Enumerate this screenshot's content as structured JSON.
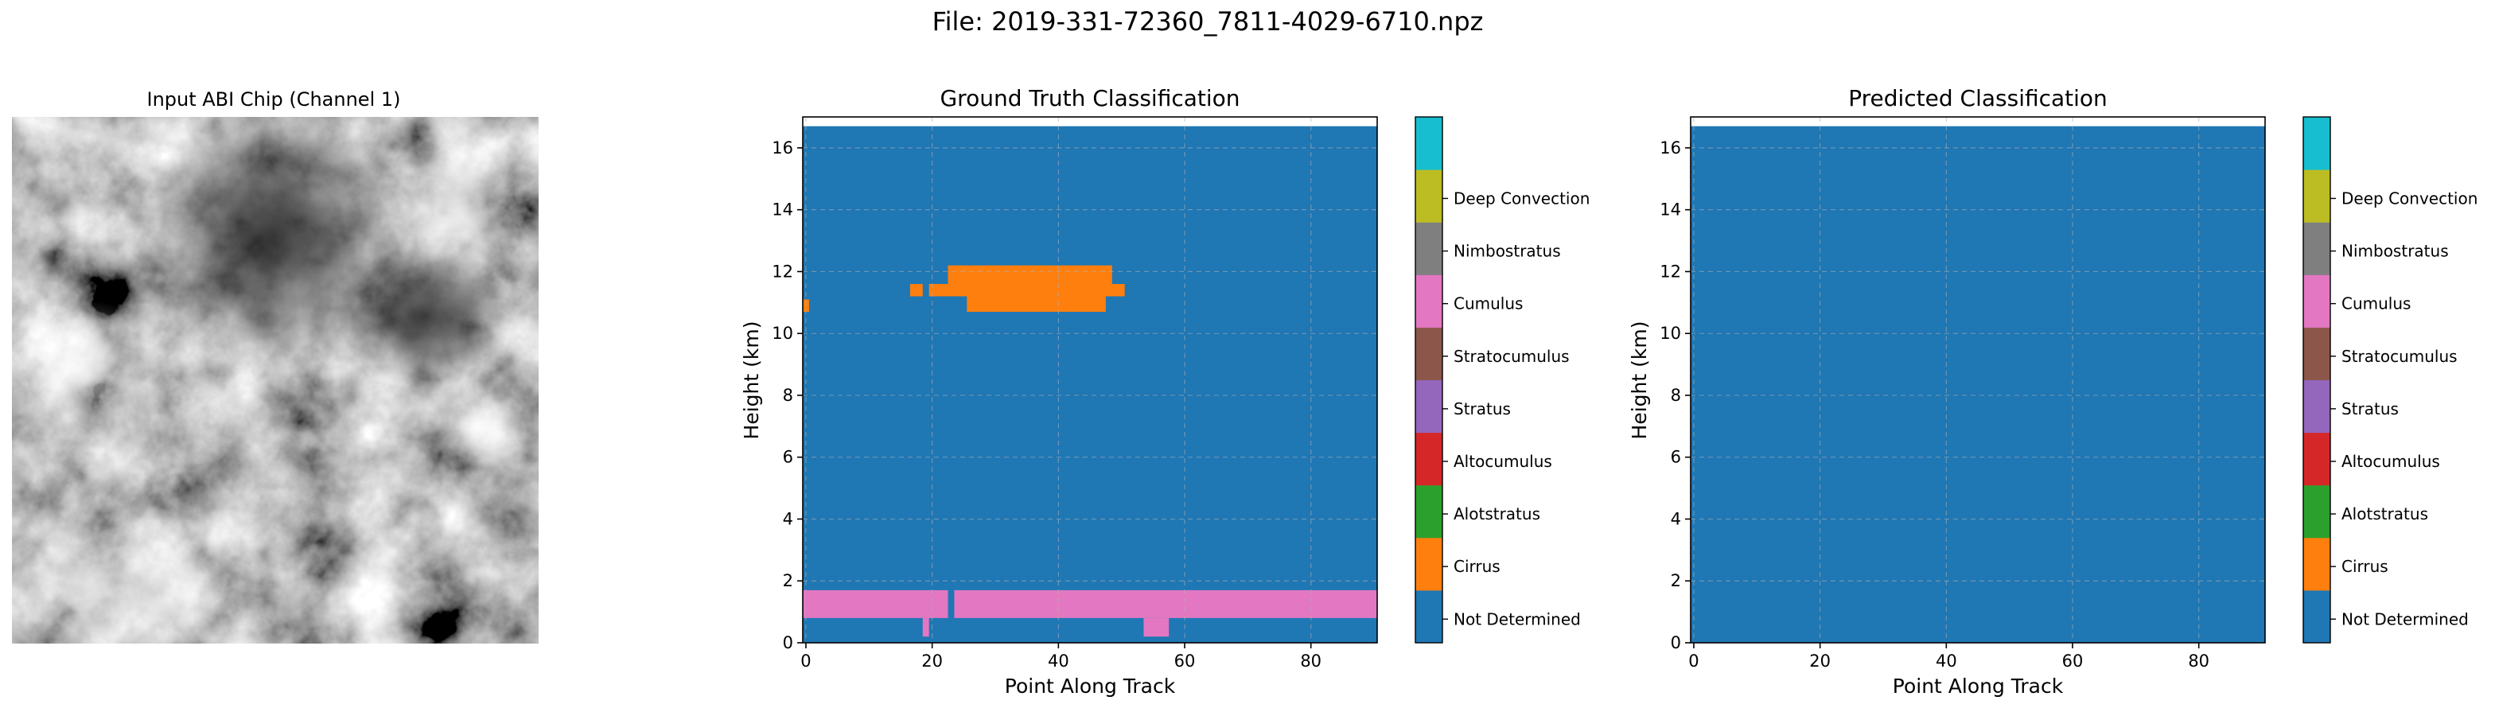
{
  "figure": {
    "suptitle": "File: 2019-331-72360_7811-4029-6710.npz"
  },
  "colors": {
    "classes": [
      "#1f77b4",
      "#ff7f0e",
      "#2ca02c",
      "#d62728",
      "#9467bd",
      "#8c564b",
      "#e377c2",
      "#7f7f7f",
      "#bcbd22",
      "#17becf"
    ],
    "grid": "#b0b0b0",
    "axis": "#000000"
  },
  "image_panel": {
    "title": "Input ABI Chip (Channel 1)"
  },
  "chart_data": [
    {
      "type": "heatmap",
      "title": "Ground Truth Classification",
      "xlabel": "Point Along Track",
      "ylabel": "Height (km)",
      "xlim": [
        -0.5,
        90.5
      ],
      "ylim": [
        0,
        17
      ],
      "xticks": [
        0,
        20,
        40,
        60,
        80
      ],
      "yticks": [
        0,
        2,
        4,
        6,
        8,
        10,
        12,
        14,
        16
      ],
      "grid": true,
      "data_top_km": 16.7,
      "background_class": 0,
      "regions": [
        {
          "class": 1,
          "x0": -0.5,
          "x1": 0.5,
          "y0": 10.7,
          "y1": 11.1
        },
        {
          "class": 1,
          "x0": 16.5,
          "x1": 18.5,
          "y0": 11.2,
          "y1": 11.6
        },
        {
          "class": 1,
          "x0": 19.5,
          "x1": 50.5,
          "y0": 11.2,
          "y1": 11.6
        },
        {
          "class": 1,
          "x0": 22.5,
          "x1": 48.5,
          "y0": 11.6,
          "y1": 12.2
        },
        {
          "class": 1,
          "x0": 25.5,
          "x1": 47.5,
          "y0": 10.7,
          "y1": 11.2
        },
        {
          "class": 6,
          "x0": -0.5,
          "x1": 22.5,
          "y0": 0.8,
          "y1": 1.7
        },
        {
          "class": 6,
          "x0": 23.5,
          "x1": 90.5,
          "y0": 0.8,
          "y1": 1.7
        },
        {
          "class": 6,
          "x0": 18.5,
          "x1": 19.5,
          "y0": 0.2,
          "y1": 0.8
        },
        {
          "class": 6,
          "x0": 53.5,
          "x1": 57.5,
          "y0": 0.2,
          "y1": 0.8
        }
      ]
    },
    {
      "type": "heatmap",
      "title": "Predicted Classification",
      "xlabel": "Point Along Track",
      "ylabel": "Height (km)",
      "xlim": [
        -0.5,
        90.5
      ],
      "ylim": [
        0,
        17
      ],
      "xticks": [
        0,
        20,
        40,
        60,
        80
      ],
      "yticks": [
        0,
        2,
        4,
        6,
        8,
        10,
        12,
        14,
        16
      ],
      "grid": true,
      "data_top_km": 16.7,
      "background_class": 0,
      "regions": []
    }
  ],
  "colorbar": {
    "labels": [
      "Not Determined",
      "Cirrus",
      "Alotstratus",
      "Altocumulus",
      "Stratus",
      "Stratocumulus",
      "Cumulus",
      "Nimbostratus",
      "Deep Convection"
    ],
    "n_classes": 10
  }
}
